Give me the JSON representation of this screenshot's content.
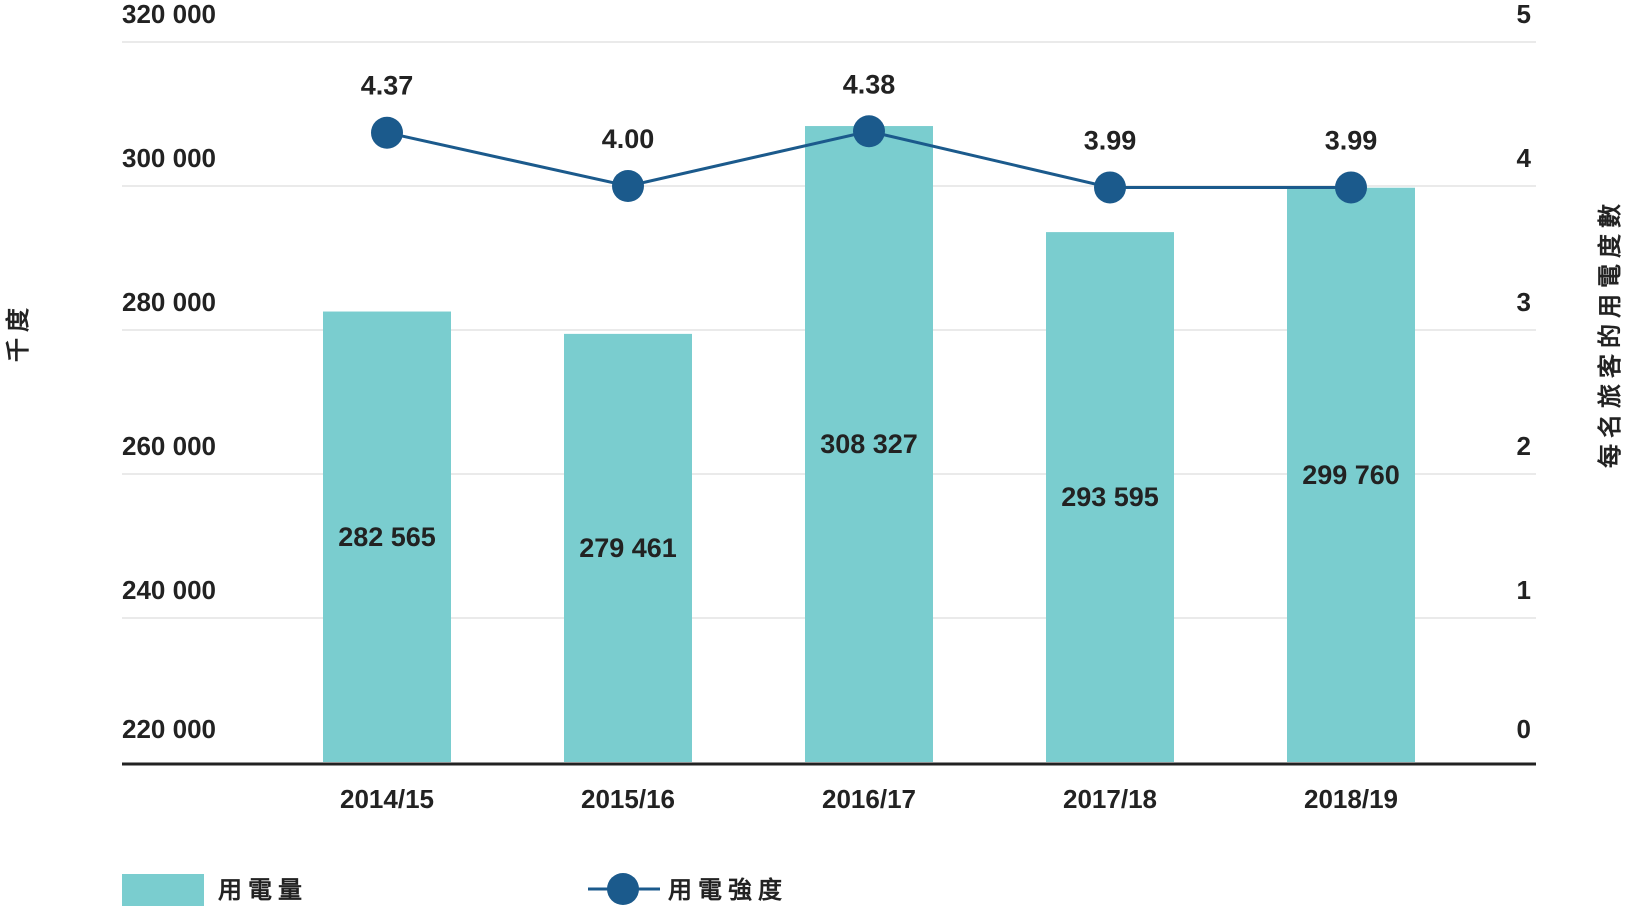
{
  "colors": {
    "bar": "#7ACDCF",
    "line": "#1B5A8C",
    "grid": "#E3E3E3",
    "axis": "#222222",
    "text": "#222222"
  },
  "chart_data": {
    "type": "bar",
    "categories": [
      "2014/15",
      "2015/16",
      "2016/17",
      "2017/18",
      "2018/19"
    ],
    "series": [
      {
        "name": "用電量",
        "type": "bar",
        "axis": "left",
        "values": [
          282565,
          279461,
          308327,
          293595,
          299760
        ],
        "labels": [
          "282 565",
          "279 461",
          "308 327",
          "293 595",
          "299 760"
        ]
      },
      {
        "name": "用電強度",
        "type": "line",
        "axis": "right",
        "values": [
          4.37,
          4.0,
          4.38,
          3.99,
          3.99
        ],
        "labels": [
          "4.37",
          "4.00",
          "4.38",
          "3.99",
          "3.99"
        ]
      }
    ],
    "ylabel_left": "千度",
    "ylabel_right": "每名旅客的用電度數",
    "ylim_left": [
      220000,
      320000
    ],
    "ylim_right": [
      0,
      5
    ],
    "yticks_left": [
      "220 000",
      "240 000",
      "260 000",
      "280 000",
      "300 000",
      "320 000"
    ],
    "yticks_right": [
      "0",
      "1",
      "2",
      "3",
      "4",
      "5"
    ],
    "grid": true,
    "legend_position": "bottom-left"
  }
}
